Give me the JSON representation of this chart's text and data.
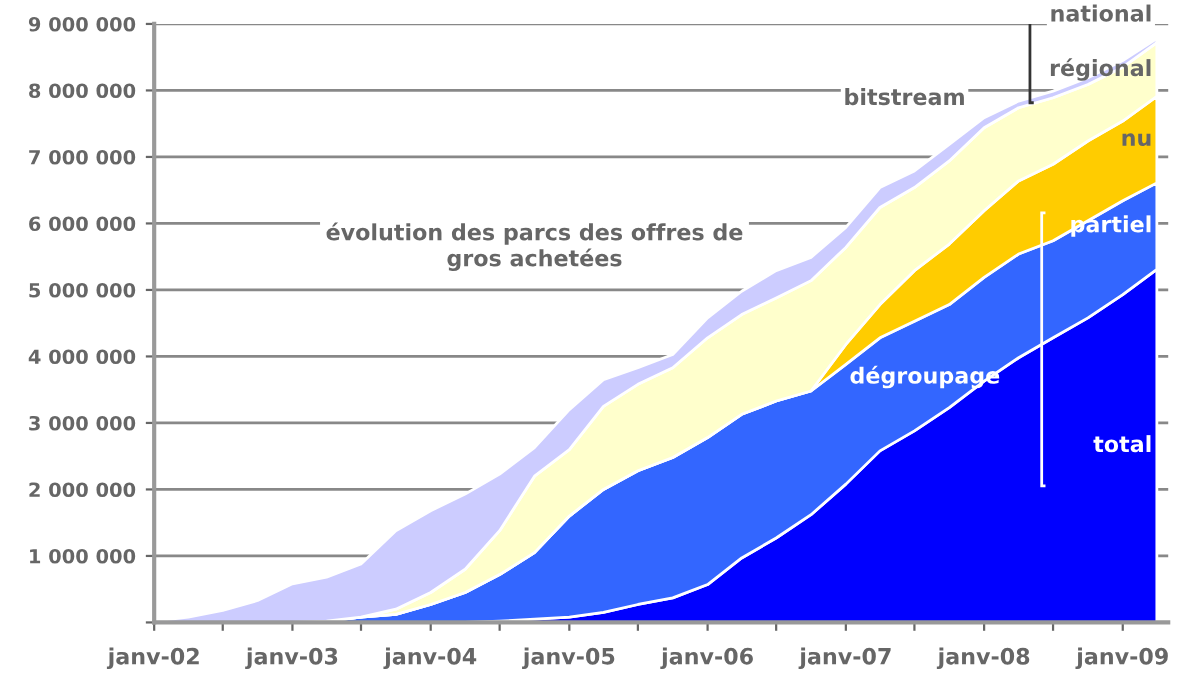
{
  "chart_data": {
    "type": "area",
    "stacked": true,
    "title": "évolution des parcs des offres de\ngros achetées",
    "x": [
      "2002-01",
      "2002-04",
      "2002-07",
      "2002-10",
      "2003-01",
      "2003-04",
      "2003-07",
      "2003-10",
      "2004-01",
      "2004-04",
      "2004-07",
      "2004-10",
      "2005-01",
      "2005-04",
      "2005-07",
      "2005-10",
      "2006-01",
      "2006-04",
      "2006-07",
      "2006-10",
      "2007-01",
      "2007-04",
      "2007-07",
      "2007-10",
      "2008-01",
      "2008-04",
      "2008-07",
      "2008-10",
      "2009-01",
      "2009-04"
    ],
    "series": [
      {
        "name": "total",
        "color": "#0000ff",
        "values": [
          0,
          0,
          0,
          0,
          0,
          0,
          0,
          0,
          0,
          0,
          20000,
          50000,
          80000,
          150000,
          270000,
          370000,
          570000,
          970000,
          1270000,
          1620000,
          2080000,
          2580000,
          2880000,
          3230000,
          3630000,
          3980000,
          4280000,
          4580000,
          4930000,
          5310000
        ]
      },
      {
        "name": "partiel",
        "color": "#3366ff",
        "values": [
          0,
          0,
          0,
          0,
          0,
          20000,
          80000,
          120000,
          270000,
          450000,
          700000,
          1000000,
          1520000,
          1850000,
          2010000,
          2110000,
          2210000,
          2160000,
          2060000,
          1860000,
          1800000,
          1700000,
          1650000,
          1550000,
          1560000,
          1560000,
          1460000,
          1460000,
          1410000,
          1300000
        ]
      },
      {
        "name": "nu",
        "color": "#ffcc00",
        "values": [
          0,
          0,
          0,
          0,
          0,
          0,
          0,
          0,
          0,
          0,
          0,
          0,
          0,
          0,
          0,
          0,
          0,
          0,
          0,
          0,
          300000,
          500000,
          760000,
          910000,
          1000000,
          1100000,
          1150000,
          1200000,
          1200000,
          1300000
        ]
      },
      {
        "name": "régional",
        "color": "#ffffcc",
        "values": [
          0,
          0,
          0,
          0,
          0,
          0,
          0,
          80000,
          180000,
          350000,
          660000,
          1150000,
          1000000,
          1250000,
          1300000,
          1350000,
          1500000,
          1500000,
          1550000,
          1660000,
          1460000,
          1460000,
          1250000,
          1250000,
          1250000,
          1100000,
          1000000,
          850000,
          810000,
          810000
        ]
      },
      {
        "name": "national",
        "color": "#ccccff",
        "values": [
          20000,
          80000,
          180000,
          330000,
          580000,
          660000,
          800000,
          1180000,
          1230000,
          1130000,
          850000,
          430000,
          600000,
          400000,
          250000,
          200000,
          300000,
          350000,
          410000,
          350000,
          300000,
          300000,
          250000,
          250000,
          150000,
          100000,
          100000,
          100000,
          100000,
          60000
        ]
      }
    ],
    "xlim": [
      "2002-01",
      "2009-05"
    ],
    "xticks": [
      {
        "value": "2002-01",
        "label": "janv-02"
      },
      {
        "value": "2002-07",
        "label": null
      },
      {
        "value": "2003-01",
        "label": "janv-03"
      },
      {
        "value": "2003-07",
        "label": null
      },
      {
        "value": "2004-01",
        "label": "janv-04"
      },
      {
        "value": "2004-07",
        "label": null
      },
      {
        "value": "2005-01",
        "label": "janv-05"
      },
      {
        "value": "2005-07",
        "label": null
      },
      {
        "value": "2006-01",
        "label": "janv-06"
      },
      {
        "value": "2006-07",
        "label": null
      },
      {
        "value": "2007-01",
        "label": "janv-07"
      },
      {
        "value": "2007-07",
        "label": null
      },
      {
        "value": "2008-01",
        "label": "janv-08"
      },
      {
        "value": "2008-07",
        "label": null
      },
      {
        "value": "2009-01",
        "label": "janv-09"
      }
    ],
    "ylim": [
      0,
      9000000
    ],
    "yticks": [
      {
        "value": 0,
        "label": null
      },
      {
        "value": 1000000,
        "label": "1 000 000"
      },
      {
        "value": 2000000,
        "label": "2 000 000"
      },
      {
        "value": 3000000,
        "label": "3 000 000"
      },
      {
        "value": 4000000,
        "label": "4 000 000"
      },
      {
        "value": 5000000,
        "label": "5 000 000"
      },
      {
        "value": 6000000,
        "label": "6 000 000"
      },
      {
        "value": 7000000,
        "label": "7 000 000"
      },
      {
        "value": 8000000,
        "label": "8 000 000"
      },
      {
        "value": 9000000,
        "label": "9 000 000"
      }
    ],
    "grid": "y",
    "legend": false,
    "annotations": [
      "bitstream",
      "dégroupage"
    ]
  }
}
